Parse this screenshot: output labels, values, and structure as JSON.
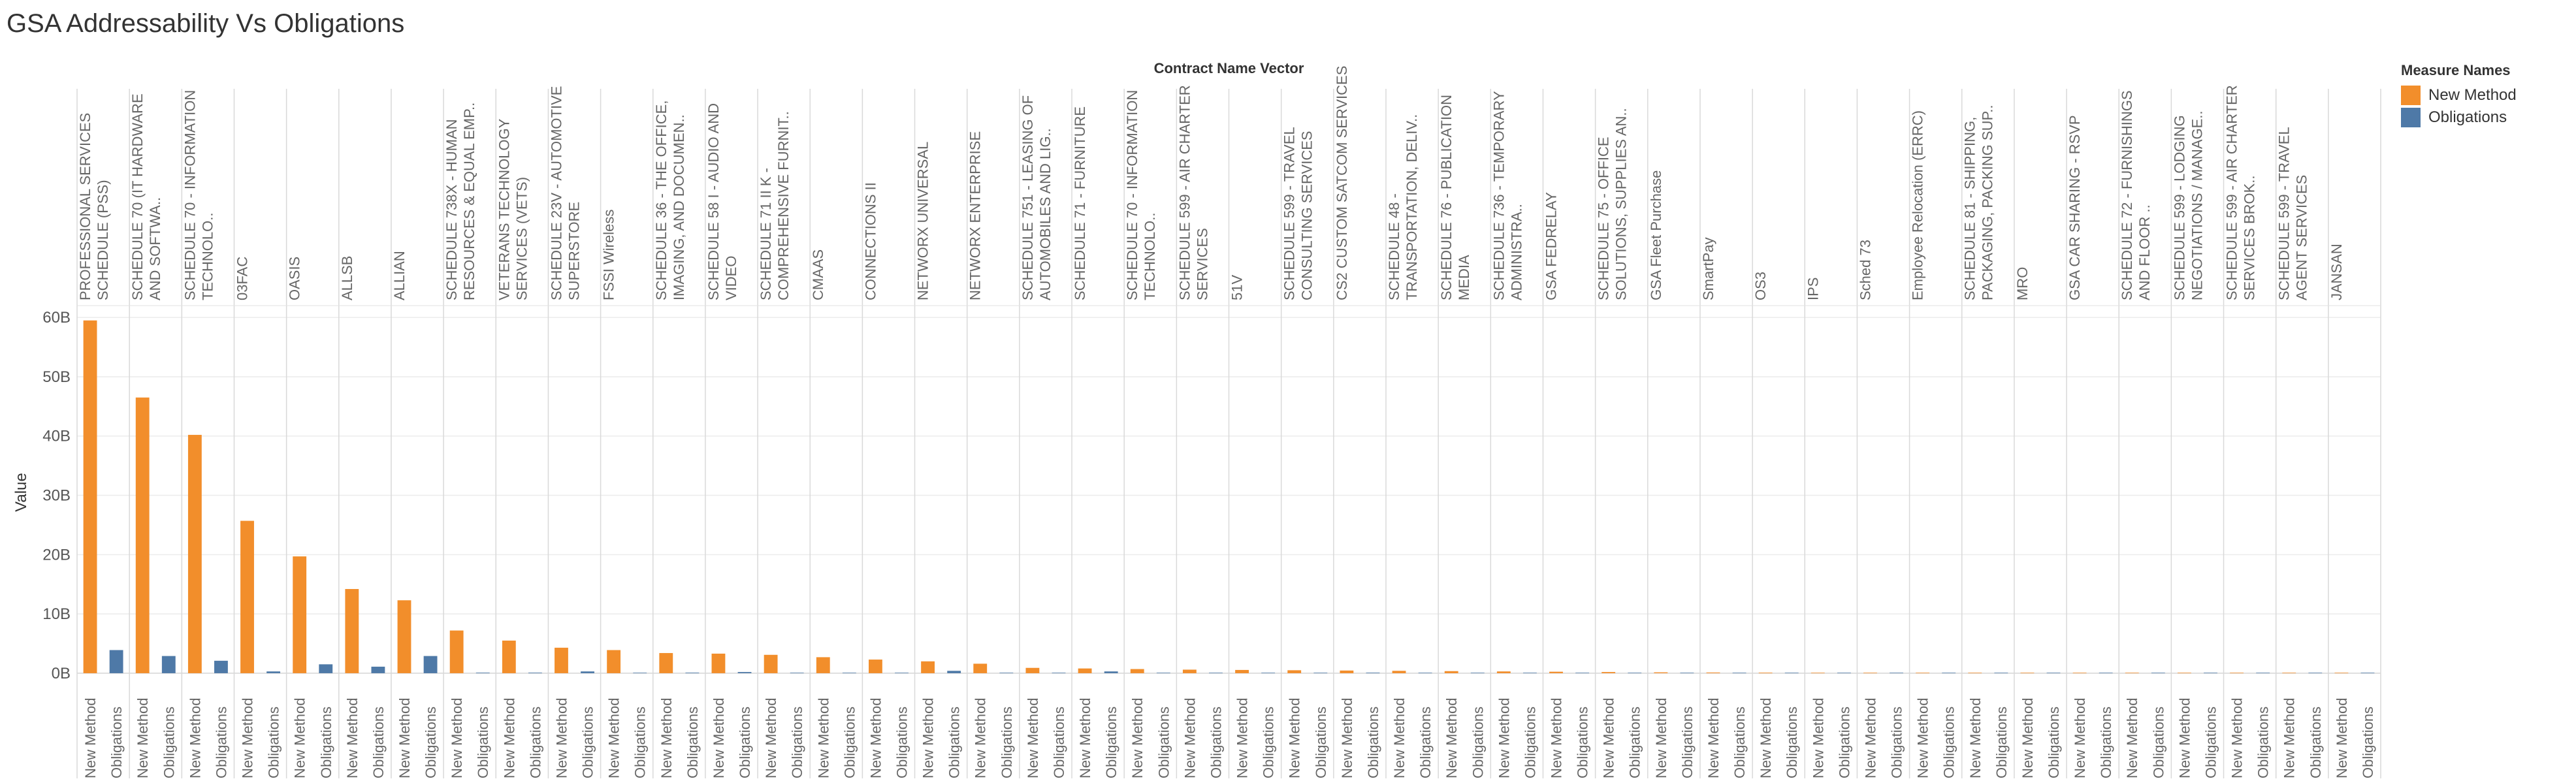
{
  "title": "GSA Addressability Vs Obligations",
  "legend": {
    "title": "Measure Names",
    "items": [
      {
        "label": "New Method",
        "color": "#F28E2B"
      },
      {
        "label": "Obligations",
        "color": "#4E79A7"
      }
    ]
  },
  "chart_data": {
    "type": "bar",
    "title": "GSA Addressability Vs Obligations",
    "column_header": "Contract Name Vector",
    "ylabel": "Value",
    "ylim": [
      -1,
      62
    ],
    "yticks": [
      0,
      10,
      20,
      30,
      40,
      50,
      60
    ],
    "ytick_labels": [
      "0B",
      "10B",
      "20B",
      "30B",
      "40B",
      "50B",
      "60B"
    ],
    "grid": true,
    "legend_position": "top-right",
    "measures": [
      "New Method",
      "Obligations"
    ],
    "categories": [
      {
        "label": "PROFESSIONAL SERVICES SCHEDULE (PSS)",
        "values": [
          59.5,
          3.9
        ]
      },
      {
        "label": "SCHEDULE 70 (IT HARDWARE AND SOFTWA..",
        "values": [
          46.5,
          2.9
        ]
      },
      {
        "label": "SCHEDULE 70 - INFORMATION TECHNOLO..",
        "values": [
          40.2,
          2.1
        ]
      },
      {
        "label": "03FAC",
        "values": [
          25.7,
          0.3
        ]
      },
      {
        "label": "OASIS",
        "values": [
          19.7,
          1.5
        ]
      },
      {
        "label": "ALLSB",
        "values": [
          14.2,
          1.1
        ]
      },
      {
        "label": "ALLIAN",
        "values": [
          12.3,
          2.9
        ]
      },
      {
        "label": "SCHEDULE 738X - HUMAN RESOURCES & EQUAL EMP..",
        "values": [
          7.2,
          0.1
        ]
      },
      {
        "label": "VETERANS TECHNOLOGY SERVICES (VETS)",
        "values": [
          5.5,
          0.1
        ]
      },
      {
        "label": "SCHEDULE 23V - AUTOMOTIVE SUPERSTORE",
        "values": [
          4.3,
          0.3
        ]
      },
      {
        "label": "FSSI Wireless",
        "values": [
          3.9,
          0.0
        ]
      },
      {
        "label": "SCHEDULE 36 - THE OFFICE, IMAGING, AND DOCUMEN..",
        "values": [
          3.4,
          0.1
        ]
      },
      {
        "label": "SCHEDULE 58 I - AUDIO AND VIDEO",
        "values": [
          3.3,
          0.2
        ]
      },
      {
        "label": "SCHEDULE 71 II K - COMPREHENSIVE FURNIT..",
        "values": [
          3.1,
          0.0
        ]
      },
      {
        "label": "CMAAS",
        "values": [
          2.7,
          0.0
        ]
      },
      {
        "label": "CONNECTIONS II",
        "values": [
          2.3,
          0.0
        ]
      },
      {
        "label": "NETWORX UNIVERSAL",
        "values": [
          2.0,
          0.4
        ]
      },
      {
        "label": "NETWORX ENTERPRISE",
        "values": [
          1.6,
          0.0
        ]
      },
      {
        "label": "SCHEDULE 751 - LEASING OF AUTOMOBILES AND LIG..",
        "values": [
          0.9,
          0.0
        ]
      },
      {
        "label": "SCHEDULE 71 - FURNITURE",
        "values": [
          0.8,
          0.3
        ]
      },
      {
        "label": "SCHEDULE 70 - INFORMATION TECHNOLO..",
        "values": [
          0.7,
          0.0
        ]
      },
      {
        "label": "SCHEDULE 599 - AIR CHARTER SERVICES",
        "values": [
          0.6,
          0.0
        ]
      },
      {
        "label": "51V",
        "values": [
          0.55,
          0.0
        ]
      },
      {
        "label": "SCHEDULE 599 - TRAVEL CONSULTING SERVICES",
        "values": [
          0.5,
          0.0
        ]
      },
      {
        "label": "CS2 CUSTOM SATCOM SERVICES",
        "values": [
          0.45,
          0.1
        ]
      },
      {
        "label": "SCHEDULE 48 - TRANSPORTATION, DELIV..",
        "values": [
          0.4,
          0.0
        ]
      },
      {
        "label": "SCHEDULE 76 - PUBLICATION MEDIA",
        "values": [
          0.35,
          0.0
        ]
      },
      {
        "label": "SCHEDULE 736 - TEMPORARY ADMINISTRA..",
        "values": [
          0.3,
          0.0
        ]
      },
      {
        "label": "GSA FEDRELAY",
        "values": [
          0.25,
          0.0
        ]
      },
      {
        "label": "SCHEDULE 75 - OFFICE SOLUTIONS, SUPPLIES AN..",
        "values": [
          0.2,
          0.0
        ]
      },
      {
        "label": "GSA Fleet Purchase",
        "values": [
          0.15,
          0.0
        ]
      },
      {
        "label": "SmartPay",
        "values": [
          0.12,
          0.0
        ]
      },
      {
        "label": "OS3",
        "values": [
          0.1,
          0.0
        ]
      },
      {
        "label": "IPS",
        "values": [
          0.08,
          0.0
        ]
      },
      {
        "label": "Sched 73",
        "values": [
          0.07,
          0.0
        ]
      },
      {
        "label": "Employee Relocation (ERRC)",
        "values": [
          0.06,
          0.0
        ]
      },
      {
        "label": "SCHEDULE 81 - SHIPPING, PACKAGING, PACKING SUP..",
        "values": [
          0.05,
          0.0
        ]
      },
      {
        "label": "MRO",
        "values": [
          0.04,
          0.0
        ]
      },
      {
        "label": "GSA CAR SHARING - RSVP",
        "values": [
          0.03,
          0.0
        ]
      },
      {
        "label": "SCHEDULE 72 - FURNISHINGS AND FLOOR ..",
        "values": [
          0.02,
          0.0
        ]
      },
      {
        "label": "SCHEDULE 599 - LODGING NEGOTIATIONS / MANAGE..",
        "values": [
          0.02,
          0.0
        ]
      },
      {
        "label": "SCHEDULE 599 - AIR CHARTER SERVICES BROK..",
        "values": [
          0.01,
          0.0
        ]
      },
      {
        "label": "SCHEDULE 599 - TRAVEL AGENT SERVICES",
        "values": [
          0.01,
          0.0
        ]
      },
      {
        "label": "JANSAN",
        "values": [
          0.01,
          0.0
        ]
      }
    ]
  }
}
